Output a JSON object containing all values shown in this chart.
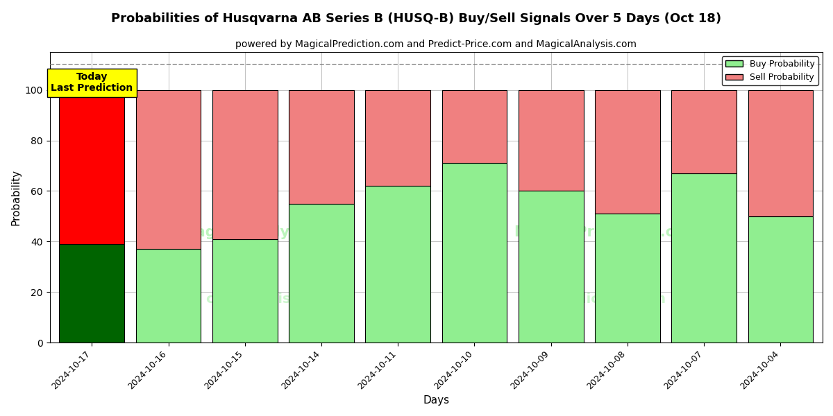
{
  "title": "Probabilities of Husqvarna AB Series B (HUSQ-B) Buy/Sell Signals Over 5 Days (Oct 18)",
  "subtitle": "powered by MagicalPrediction.com and Predict-Price.com and MagicalAnalysis.com",
  "xlabel": "Days",
  "ylabel": "Probability",
  "dates": [
    "2024-10-17",
    "2024-10-16",
    "2024-10-15",
    "2024-10-14",
    "2024-10-11",
    "2024-10-10",
    "2024-10-09",
    "2024-10-08",
    "2024-10-07",
    "2024-10-04"
  ],
  "buy_values": [
    39,
    37,
    41,
    55,
    62,
    71,
    60,
    51,
    67,
    50
  ],
  "sell_values": [
    61,
    63,
    59,
    45,
    38,
    29,
    40,
    49,
    33,
    50
  ],
  "buy_colors_normal": "#90EE90",
  "sell_colors_normal": "#F08080",
  "buy_color_today": "#006400",
  "sell_color_today": "#FF0000",
  "today_index": 0,
  "bar_edge_color": "black",
  "bar_edge_width": 0.8,
  "ylim": [
    0,
    115
  ],
  "yticks": [
    0,
    20,
    40,
    60,
    80,
    100
  ],
  "dashed_line_y": 110,
  "annotation_text": "Today\nLast Prediction",
  "annotation_bg": "yellow",
  "legend_buy_label": "Buy Probability",
  "legend_sell_label": "Sell Probability",
  "bg_color": "white",
  "grid_color": "gray",
  "grid_alpha": 0.5,
  "title_fontsize": 13,
  "subtitle_fontsize": 10,
  "axis_label_fontsize": 11
}
